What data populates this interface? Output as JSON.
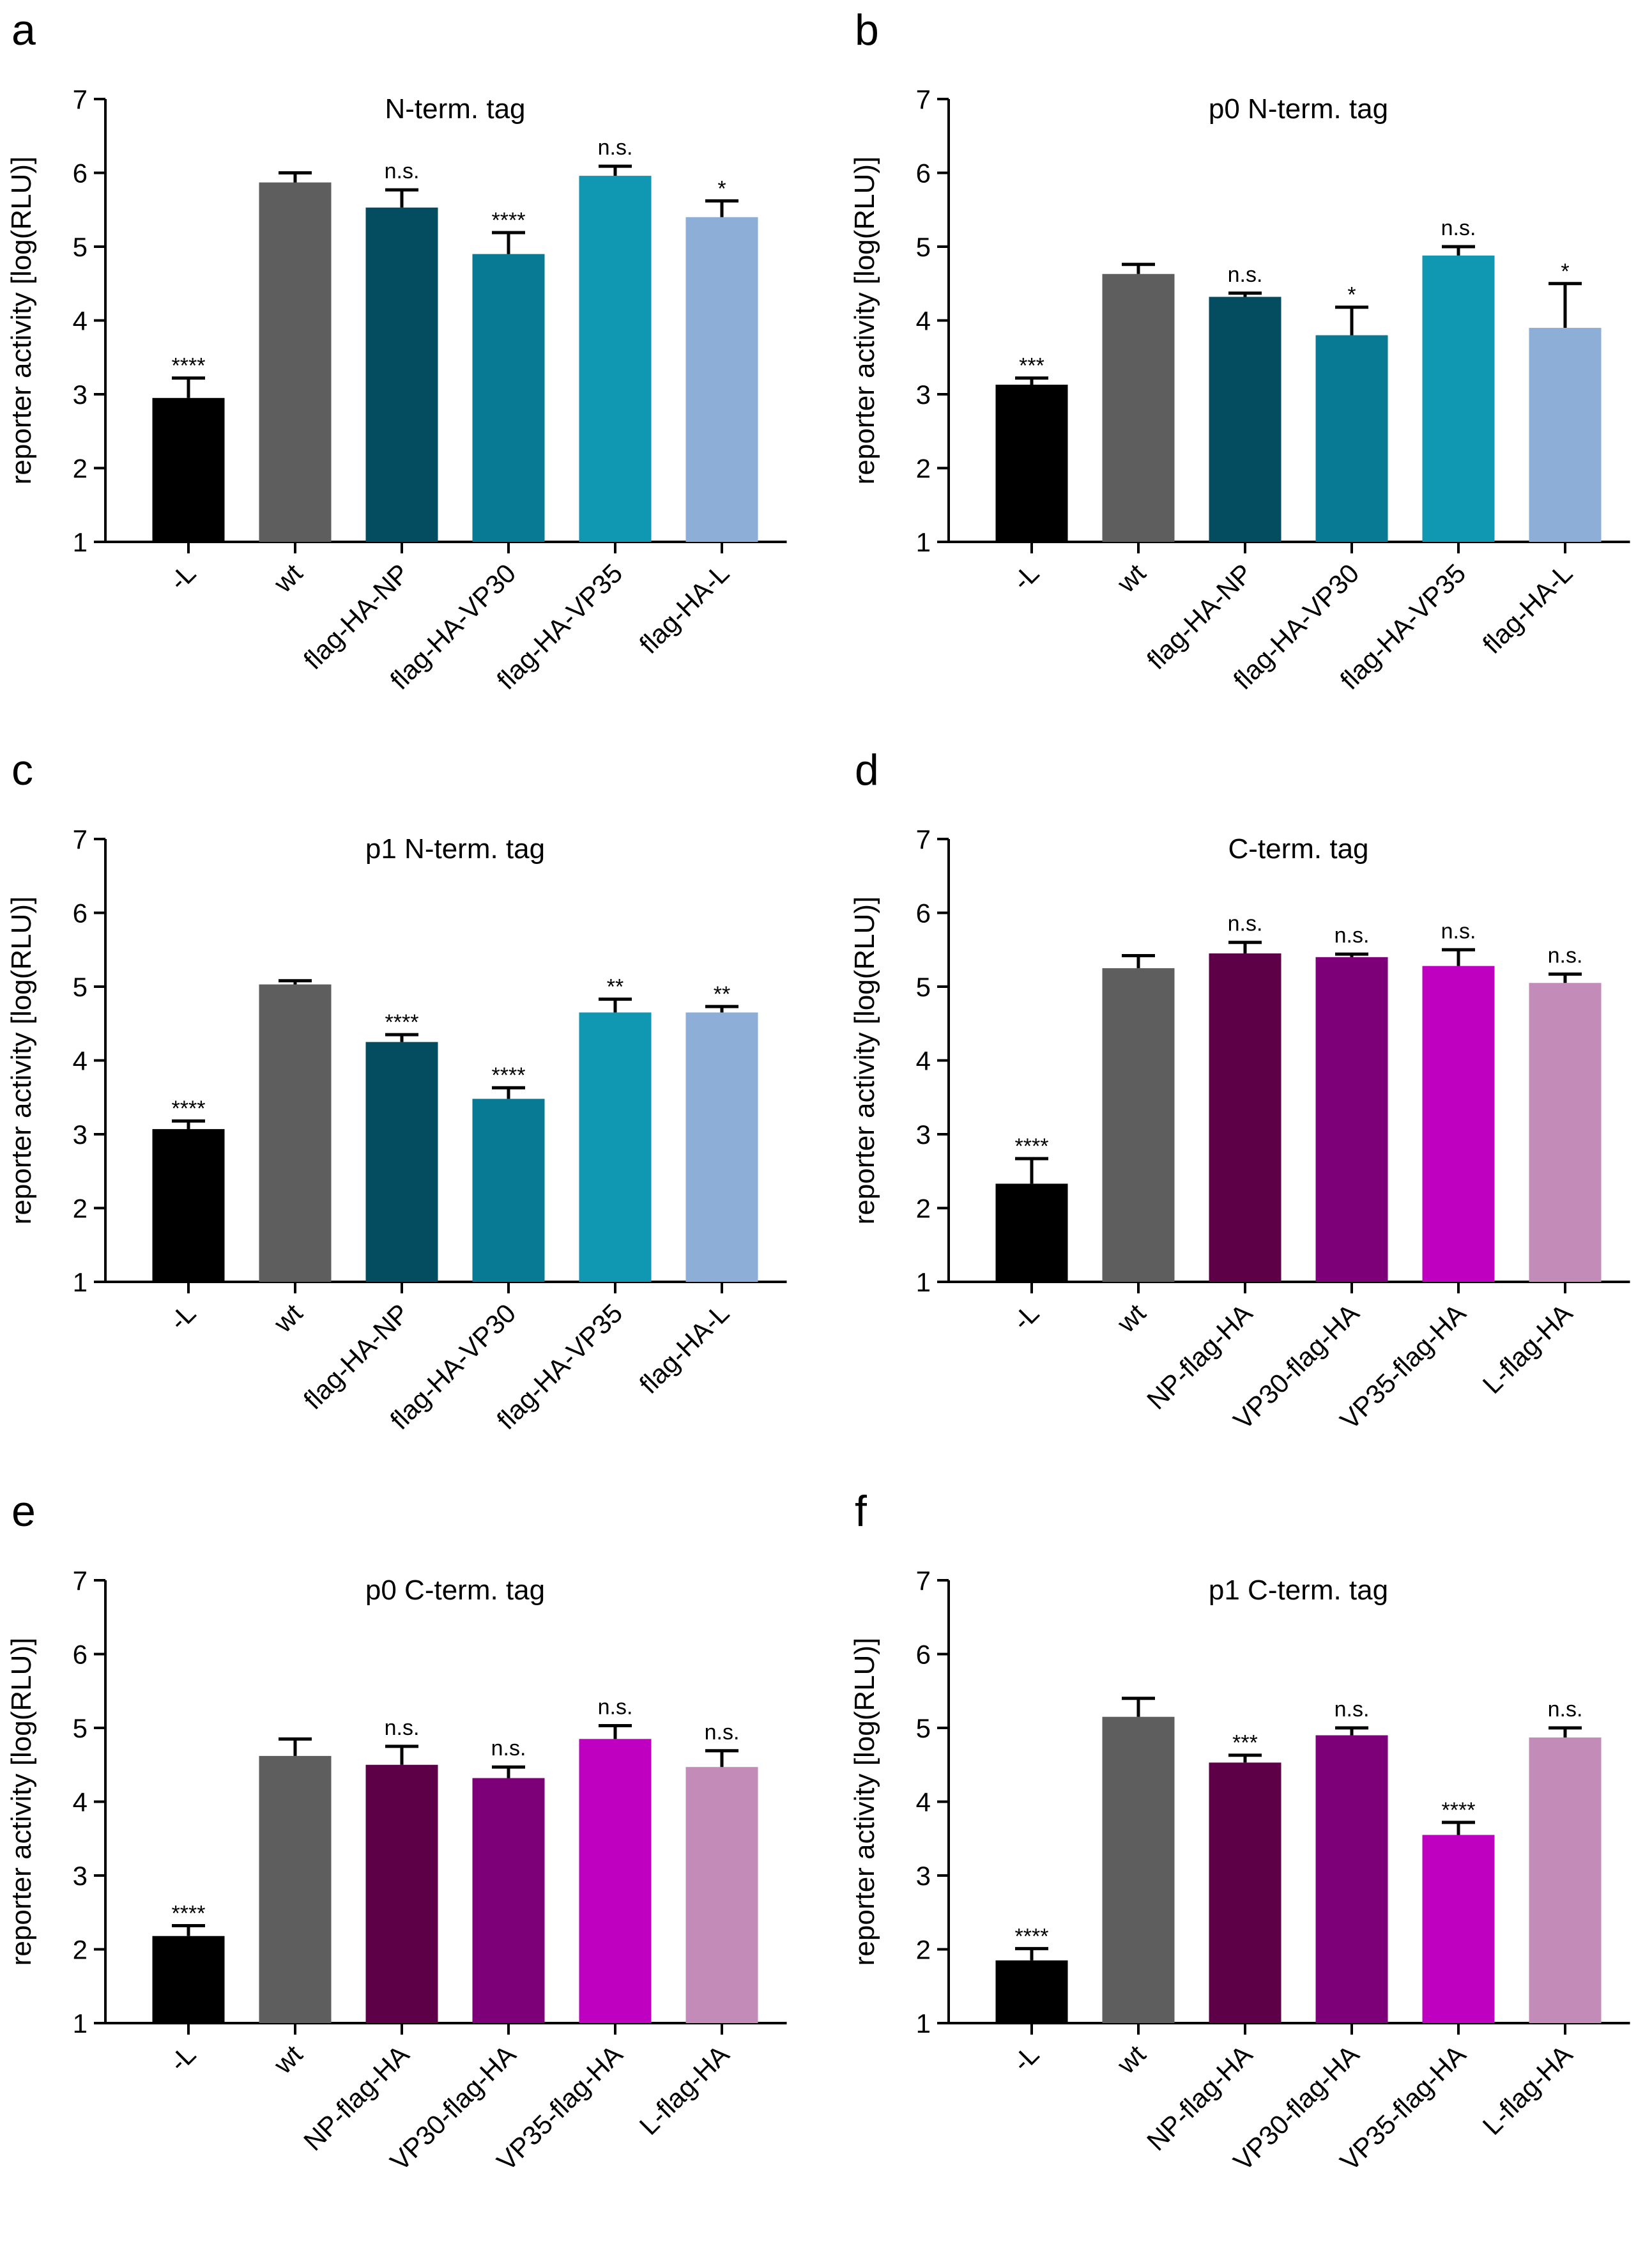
{
  "chart_data": [
    {
      "letter": "a",
      "type": "bar",
      "title": "N-term. tag",
      "ylabel": "reporter activity [log(RLU)]",
      "xlabel": "",
      "ylim": [
        1,
        7
      ],
      "yticks": [
        "1",
        "2",
        "3",
        "4",
        "5",
        "6",
        "7"
      ],
      "categories": [
        "-L",
        "wt",
        "flag-HA-NP",
        "flag-HA-VP30",
        "flag-HA-VP35",
        "flag-HA-L"
      ],
      "values": [
        2.95,
        5.87,
        5.53,
        4.9,
        5.96,
        5.4
      ],
      "errors": [
        0.27,
        0.13,
        0.24,
        0.29,
        0.13,
        0.22
      ],
      "significance": [
        "****",
        "",
        "n.s.",
        "****",
        "n.s.",
        "*"
      ],
      "colors": [
        "#000000",
        "#5e5e5e",
        "#044d60",
        "#087a94",
        "#1097b2",
        "#8daed6"
      ]
    },
    {
      "letter": "b",
      "type": "bar",
      "title": "p0 N-term. tag",
      "ylabel": "reporter activity [log(RLU)]",
      "xlabel": "",
      "ylim": [
        1,
        7
      ],
      "yticks": [
        "1",
        "2",
        "3",
        "4",
        "5",
        "6",
        "7"
      ],
      "categories": [
        "-L",
        "wt",
        "flag-HA-NP",
        "flag-HA-VP30",
        "flag-HA-VP35",
        "flag-HA-L"
      ],
      "values": [
        3.13,
        4.63,
        4.32,
        3.8,
        4.88,
        3.9
      ],
      "errors": [
        0.09,
        0.13,
        0.05,
        0.38,
        0.12,
        0.6
      ],
      "significance": [
        "***",
        "",
        "n.s.",
        "*",
        "n.s.",
        "*"
      ],
      "colors": [
        "#000000",
        "#5e5e5e",
        "#044d60",
        "#087a94",
        "#1097b2",
        "#8daed6"
      ]
    },
    {
      "letter": "c",
      "type": "bar",
      "title": "p1 N-term. tag",
      "ylabel": "reporter activity [log(RLU)]",
      "xlabel": "",
      "ylim": [
        1,
        7
      ],
      "yticks": [
        "1",
        "2",
        "3",
        "4",
        "5",
        "6",
        "7"
      ],
      "categories": [
        "-L",
        "wt",
        "flag-HA-NP",
        "flag-HA-VP30",
        "flag-HA-VP35",
        "flag-HA-L"
      ],
      "values": [
        3.07,
        5.03,
        4.25,
        3.48,
        4.65,
        4.65
      ],
      "errors": [
        0.11,
        0.05,
        0.1,
        0.15,
        0.18,
        0.08
      ],
      "significance": [
        "****",
        "",
        "****",
        "****",
        "**",
        "**"
      ],
      "colors": [
        "#000000",
        "#5e5e5e",
        "#044d60",
        "#087a94",
        "#1097b2",
        "#8daed6"
      ]
    },
    {
      "letter": "d",
      "type": "bar",
      "title": "C-term. tag",
      "ylabel": "reporter activity [log(RLU)]",
      "xlabel": "",
      "ylim": [
        1,
        7
      ],
      "yticks": [
        "1",
        "2",
        "3",
        "4",
        "5",
        "6",
        "7"
      ],
      "categories": [
        "-L",
        "wt",
        "NP-flag-HA",
        "VP30-flag-HA",
        "VP35-flag-HA",
        "L-flag-HA"
      ],
      "values": [
        2.33,
        5.25,
        5.45,
        5.4,
        5.28,
        5.05
      ],
      "errors": [
        0.34,
        0.17,
        0.15,
        0.04,
        0.22,
        0.12
      ],
      "significance": [
        "****",
        "",
        "n.s.",
        "n.s.",
        "n.s.",
        "n.s."
      ],
      "colors": [
        "#000000",
        "#5e5e5e",
        "#5e0048",
        "#7d0079",
        "#c000c0",
        "#c38bb7"
      ]
    },
    {
      "letter": "e",
      "type": "bar",
      "title": "p0 C-term. tag",
      "ylabel": "reporter activity [log(RLU)]",
      "xlabel": "",
      "ylim": [
        1,
        7
      ],
      "yticks": [
        "1",
        "2",
        "3",
        "4",
        "5",
        "6",
        "7"
      ],
      "categories": [
        "-L",
        "wt",
        "NP-flag-HA",
        "VP30-flag-HA",
        "VP35-flag-HA",
        "L-flag-HA"
      ],
      "values": [
        2.18,
        4.62,
        4.5,
        4.32,
        4.85,
        4.47
      ],
      "errors": [
        0.14,
        0.23,
        0.25,
        0.15,
        0.18,
        0.22
      ],
      "significance": [
        "****",
        "",
        "n.s.",
        "n.s.",
        "n.s.",
        "n.s."
      ],
      "colors": [
        "#000000",
        "#5e5e5e",
        "#5e0048",
        "#7d0079",
        "#c000c0",
        "#c38bb7"
      ]
    },
    {
      "letter": "f",
      "type": "bar",
      "title": "p1 C-term. tag",
      "ylabel": "reporter activity [log(RLU)]",
      "xlabel": "",
      "ylim": [
        1,
        7
      ],
      "yticks": [
        "1",
        "2",
        "3",
        "4",
        "5",
        "6",
        "7"
      ],
      "categories": [
        "-L",
        "wt",
        "NP-flag-HA",
        "VP30-flag-HA",
        "VP35-flag-HA",
        "L-flag-HA"
      ],
      "values": [
        1.85,
        5.15,
        4.53,
        4.9,
        3.55,
        4.87
      ],
      "errors": [
        0.16,
        0.25,
        0.1,
        0.1,
        0.17,
        0.13
      ],
      "significance": [
        "****",
        "",
        "***",
        "n.s.",
        "****",
        "n.s."
      ],
      "colors": [
        "#000000",
        "#5e5e5e",
        "#5e0048",
        "#7d0079",
        "#c000c0",
        "#c38bb7"
      ]
    }
  ]
}
